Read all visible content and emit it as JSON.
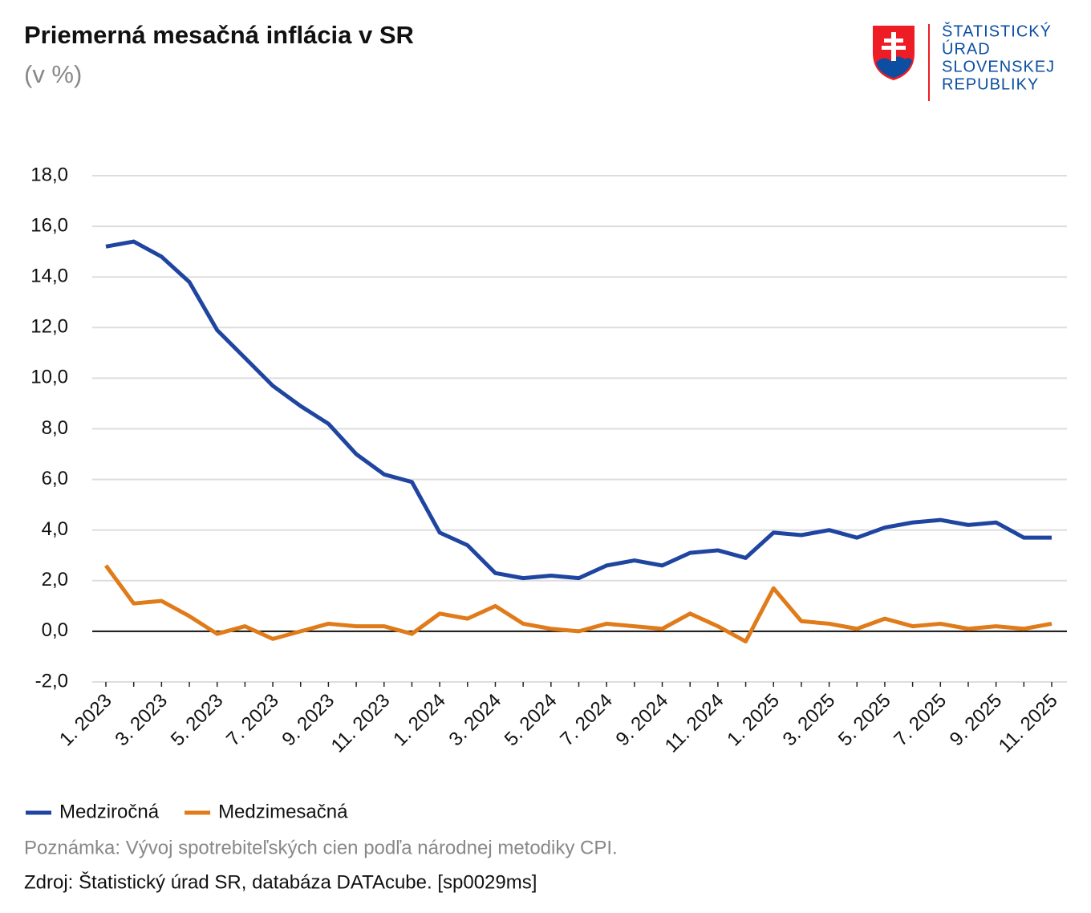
{
  "chart_data": {
    "type": "line",
    "title": "Priemerná mesačná inflácia v SR",
    "subtitle": "(v %)",
    "categories": [
      "1. 2023",
      null,
      "3. 2023",
      null,
      "5. 2023",
      null,
      "7. 2023",
      null,
      "9. 2023",
      null,
      "11. 2023",
      null,
      "1. 2024",
      null,
      "3. 2024",
      null,
      "5. 2024",
      null,
      "7. 2024",
      null,
      "9. 2024",
      null,
      "11. 2024",
      null,
      "1. 2025",
      null,
      "3. 2025",
      null,
      "5. 2025",
      null,
      "7. 2025",
      null,
      "9. 2025",
      null,
      "11. 2025"
    ],
    "series": [
      {
        "name": "Medziročná",
        "color": "#1f45a0",
        "values": [
          15.2,
          15.4,
          14.8,
          13.8,
          11.9,
          10.8,
          9.7,
          8.9,
          8.2,
          7.0,
          6.2,
          5.9,
          3.9,
          3.4,
          2.3,
          2.1,
          2.2,
          2.1,
          2.6,
          2.8,
          2.6,
          3.1,
          3.2,
          2.9,
          3.9,
          3.8,
          4.0,
          3.7,
          4.1,
          4.3,
          4.4,
          4.2,
          4.3,
          3.7,
          3.7
        ]
      },
      {
        "name": "Medzimesačná",
        "color": "#e07b1a",
        "values": [
          2.6,
          1.1,
          1.2,
          0.6,
          -0.1,
          0.2,
          -0.3,
          0.0,
          0.3,
          0.2,
          0.2,
          -0.1,
          0.7,
          0.5,
          1.0,
          0.3,
          0.1,
          0.0,
          0.3,
          0.2,
          0.1,
          0.7,
          0.2,
          -0.4,
          1.7,
          0.4,
          0.3,
          0.1,
          0.5,
          0.2,
          0.3,
          0.1,
          0.2,
          0.1,
          0.3
        ]
      }
    ],
    "ylim": [
      -2,
      18
    ],
    "yticks": [
      {
        "value": -2,
        "label": "-2,0"
      },
      {
        "value": 0,
        "label": "0,0"
      },
      {
        "value": 2,
        "label": "2,0"
      },
      {
        "value": 4,
        "label": "4,0"
      },
      {
        "value": 6,
        "label": "6,0"
      },
      {
        "value": 8,
        "label": "8,0"
      },
      {
        "value": 10,
        "label": "10,0"
      },
      {
        "value": 12,
        "label": "12,0"
      },
      {
        "value": 14,
        "label": "14,0"
      },
      {
        "value": 16,
        "label": "16,0"
      },
      {
        "value": 18,
        "label": "18,0"
      }
    ],
    "grid": true,
    "legend": "bottom-left",
    "note": "Poznámka: Vývoj spotrebiteľských cien podľa národnej metodiky CPI.",
    "source": "Zdroj: Štatistický úrad SR, databáza DATAcube. [sp0029ms]"
  },
  "logo": {
    "lines": [
      "ŠTATISTICKÝ",
      "ÚRAD",
      "SLOVENSKEJ",
      "REPUBLIKY"
    ]
  }
}
